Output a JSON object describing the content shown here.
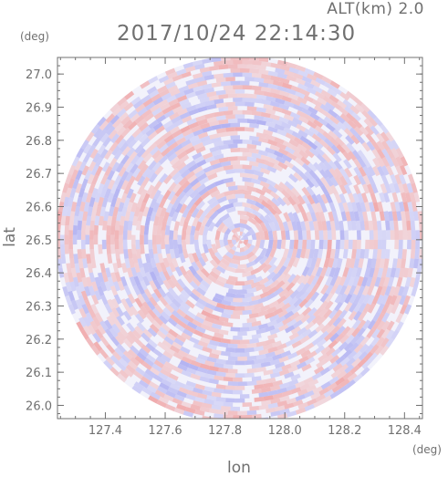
{
  "header": {
    "altitude_label": "ALT(km) 2.0",
    "timestamp": "2017/10/24 22:14:30"
  },
  "chart_data": {
    "type": "heatmap",
    "title": "2017/10/24 22:14:30",
    "subtitle": "ALT(km) 2.0",
    "xlabel": "lon",
    "ylabel": "lat",
    "x_unit": "(deg)",
    "y_unit": "(deg)",
    "xlim": [
      127.24,
      128.46
    ],
    "ylim": [
      25.96,
      27.05
    ],
    "x_ticks": [
      "127.4",
      "127.6",
      "127.8",
      "128.0",
      "128.2",
      "128.4"
    ],
    "y_ticks": [
      "26.0",
      "26.1",
      "26.2",
      "26.3",
      "26.4",
      "26.5",
      "26.6",
      "26.7",
      "26.8",
      "26.9",
      "27.0"
    ],
    "radar_center": {
      "lon": 127.85,
      "lat": 26.5
    },
    "range_edge_deg": 0.615,
    "colors": {
      "positive": "#f0a0a0",
      "negative": "#a8a8f0",
      "axis": "#707070",
      "tick_text": "#707070"
    }
  }
}
